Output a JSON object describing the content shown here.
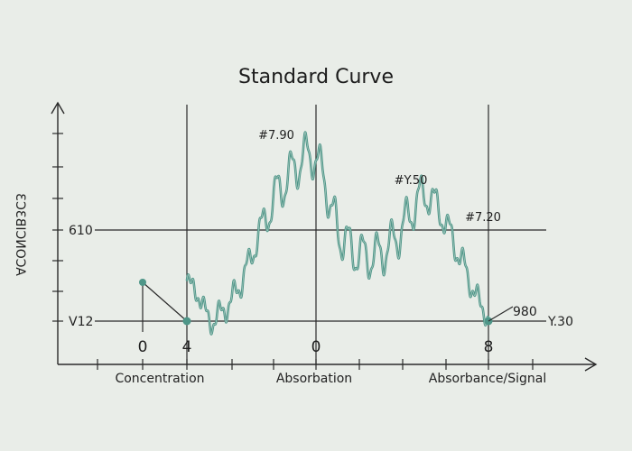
{
  "chart_data": {
    "type": "line",
    "title": "Standard Curve",
    "ylabel": "ACONCIB3C3",
    "xlabels": [
      "Concentration",
      "Absorbation",
      "Absorbance/Signal"
    ],
    "x_tick_labels": [
      "0",
      "4",
      "0",
      "8"
    ],
    "y_tick_labels": [
      "610",
      "V12"
    ],
    "right_labels": [
      "980",
      "Y.30"
    ],
    "annotations": [
      "#7.90",
      "#Y.50",
      "#7.20"
    ],
    "grid": true,
    "series": [
      {
        "color": "#4e9688",
        "points": [
          [
            0,
            0.45
          ],
          [
            0.8,
            0.0
          ],
          [
            1.3,
            0.2
          ],
          [
            1.8,
            0.55
          ],
          [
            2.2,
            1.0
          ],
          [
            2.8,
            1.45
          ],
          [
            3.3,
            1.7
          ],
          [
            3.7,
            1.85
          ],
          [
            4.1,
            1.65
          ],
          [
            4.4,
            1.15
          ],
          [
            4.7,
            0.9
          ],
          [
            5.1,
            0.75
          ],
          [
            5.5,
            0.7
          ],
          [
            5.9,
            0.75
          ],
          [
            6.3,
            0.9
          ],
          [
            6.7,
            1.15
          ],
          [
            7.1,
            1.4
          ],
          [
            7.5,
            1.3
          ],
          [
            7.9,
            1.0
          ],
          [
            8.3,
            0.65
          ],
          [
            8.7,
            0.3
          ],
          [
            9.1,
            0.0
          ]
        ]
      }
    ]
  }
}
